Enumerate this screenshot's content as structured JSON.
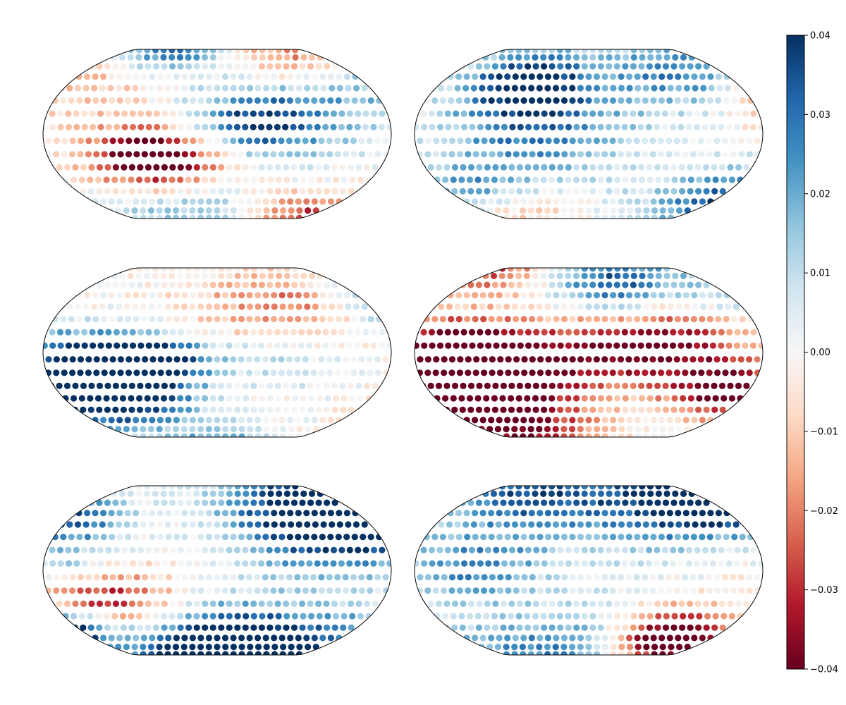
{
  "chart_data": {
    "type": "scatter",
    "projection": "elliptical-map",
    "layout": {
      "rows": 3,
      "cols": 2
    },
    "maps": [
      {
        "name": "",
        "seed": 11
      },
      {
        "name": "",
        "seed": 23
      },
      {
        "name": "",
        "seed": 37
      },
      {
        "name": "",
        "seed": 41
      },
      {
        "name": "",
        "seed": 53
      },
      {
        "name": "",
        "seed": 67
      }
    ],
    "colorbar": {
      "vmin": -0.04,
      "vmax": 0.04,
      "ticks": [
        0.04,
        0.03,
        0.02,
        0.01,
        0.0,
        -0.01,
        -0.02,
        -0.03,
        -0.04
      ],
      "tick_labels": [
        "0.04",
        "0.03",
        "0.02",
        "0.01",
        "0.00",
        "−0.01",
        "−0.02",
        "−0.03",
        "−0.04"
      ],
      "colormap": "RdBu",
      "colormap_stops": [
        "#67001f",
        "#b2182b",
        "#d6604d",
        "#f4a582",
        "#fddbc7",
        "#f7f7f7",
        "#d1e5f0",
        "#92c5de",
        "#4393c3",
        "#2166ac",
        "#053061"
      ],
      "label": ""
    },
    "marker": "circle",
    "grid": false
  }
}
